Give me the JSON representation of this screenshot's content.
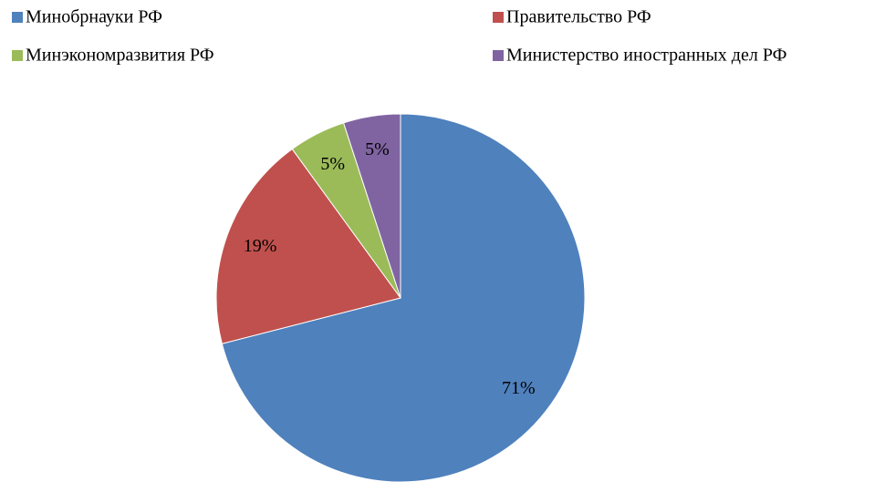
{
  "chart_data": {
    "type": "pie",
    "categories": [
      "Минобрнауки РФ",
      "Правительство РФ",
      "Минэкономразвития РФ",
      "Министерство иностранных дел РФ"
    ],
    "values": [
      71,
      19,
      5,
      5
    ],
    "value_labels": [
      "71%",
      "19%",
      "5%",
      "5%"
    ],
    "colors": [
      "#4f81bd",
      "#c0504d",
      "#9bbb59",
      "#8064a2"
    ]
  }
}
